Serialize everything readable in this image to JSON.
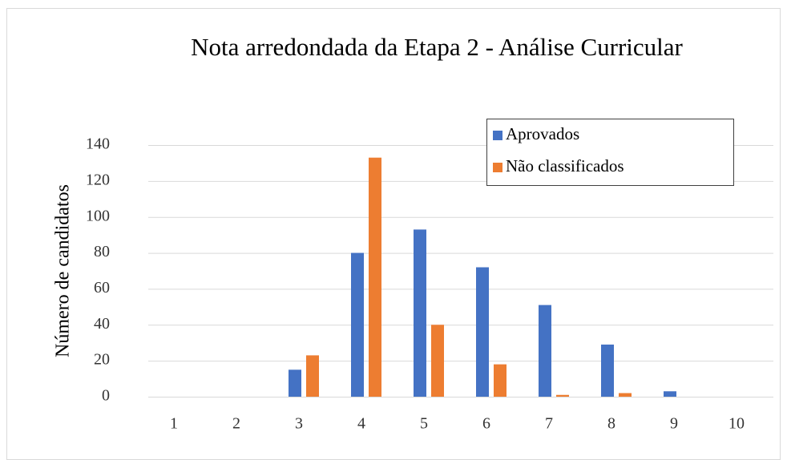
{
  "chart_data": {
    "type": "bar",
    "title": "Nota arredondada da Etapa 2 - Análise  Curricular",
    "ylabel": "Número de candidatos",
    "categories": [
      "1",
      "2",
      "3",
      "4",
      "5",
      "6",
      "7",
      "8",
      "9",
      "10"
    ],
    "series": [
      {
        "name": "Aprovados",
        "color": "#4472c4",
        "values": [
          0,
          0,
          15,
          80,
          93,
          72,
          51,
          29,
          3,
          0
        ]
      },
      {
        "name": "Não classificados",
        "color": "#ed7d31",
        "values": [
          0,
          0,
          23,
          133,
          40,
          18,
          1,
          2,
          0,
          0
        ]
      }
    ],
    "ylim": [
      0,
      140
    ],
    "yticks": [
      0,
      20,
      40,
      60,
      80,
      100,
      120,
      140
    ],
    "grid": true,
    "legend": "upper right"
  }
}
